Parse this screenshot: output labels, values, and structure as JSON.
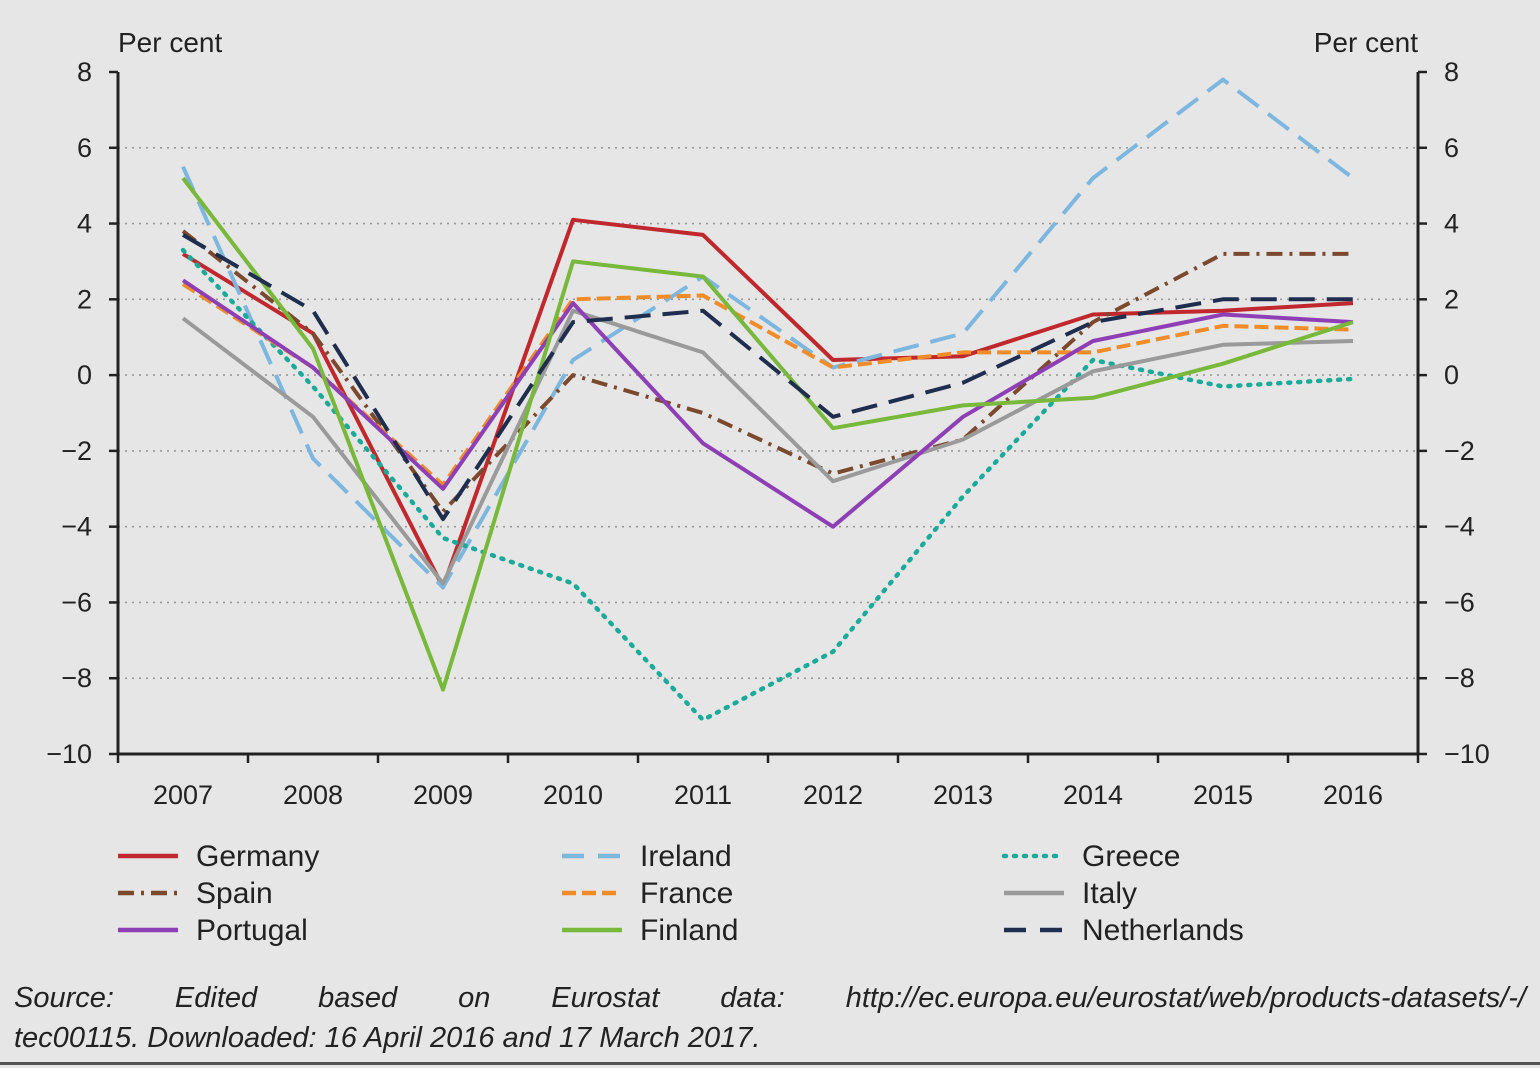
{
  "chart_data": {
    "type": "line",
    "ylabel_left": "Per cent",
    "ylabel_right": "Per cent",
    "ylim": [
      -10,
      8
    ],
    "y_ticks": [
      8,
      6,
      4,
      2,
      0,
      -2,
      -4,
      -6,
      -8,
      -10
    ],
    "y_tick_labels": [
      "8",
      "6",
      "4",
      "2",
      "0",
      "−2",
      "−4",
      "−6",
      "−8",
      "−10"
    ],
    "categories": [
      "2007",
      "2008",
      "2009",
      "2010",
      "2011",
      "2012",
      "2013",
      "2014",
      "2015",
      "2016"
    ],
    "grid": "horizontal dotted",
    "legend_position": "bottom",
    "series": [
      {
        "name": "Germany",
        "color": "#c0282d",
        "style": "solid",
        "values": [
          3.2,
          1.1,
          -5.6,
          4.1,
          3.7,
          0.4,
          0.5,
          1.6,
          1.7,
          1.9
        ]
      },
      {
        "name": "Ireland",
        "color": "#7db7e0",
        "style": "long-dash",
        "values": [
          5.5,
          -2.2,
          -5.6,
          0.4,
          2.6,
          0.2,
          1.1,
          5.2,
          7.8,
          5.2
        ]
      },
      {
        "name": "Greece",
        "color": "#1aaa99",
        "style": "dotted",
        "values": [
          3.3,
          -0.3,
          -4.3,
          -5.5,
          -9.1,
          -7.3,
          -3.2,
          0.4,
          -0.3,
          -0.1
        ]
      },
      {
        "name": "Spain",
        "color": "#7b4a2e",
        "style": "dash-dot",
        "values": [
          3.8,
          1.1,
          -3.6,
          0.0,
          -1.0,
          -2.6,
          -1.7,
          1.4,
          3.2,
          3.2
        ]
      },
      {
        "name": "France",
        "color": "#f28c28",
        "style": "dashed",
        "values": [
          2.4,
          0.2,
          -2.9,
          2.0,
          2.1,
          0.2,
          0.6,
          0.6,
          1.3,
          1.2
        ]
      },
      {
        "name": "Italy",
        "color": "#9a9a9a",
        "style": "solid",
        "values": [
          1.5,
          -1.1,
          -5.5,
          1.7,
          0.6,
          -2.8,
          -1.7,
          0.1,
          0.8,
          0.9
        ]
      },
      {
        "name": "Portugal",
        "color": "#8e3fb5",
        "style": "solid",
        "values": [
          2.5,
          0.2,
          -3.0,
          1.9,
          -1.8,
          -4.0,
          -1.1,
          0.9,
          1.6,
          1.4
        ]
      },
      {
        "name": "Finland",
        "color": "#78b83a",
        "style": "solid",
        "values": [
          5.2,
          0.7,
          -8.3,
          3.0,
          2.6,
          -1.4,
          -0.8,
          -0.6,
          0.3,
          1.4
        ]
      },
      {
        "name": "Netherlands",
        "color": "#1f2d4e",
        "style": "long-dash",
        "values": [
          3.7,
          1.7,
          -3.8,
          1.4,
          1.7,
          -1.1,
          -0.2,
          1.4,
          2.0,
          2.0
        ]
      }
    ]
  },
  "legend": [
    {
      "name": "Germany",
      "color": "#c0282d",
      "style": "solid"
    },
    {
      "name": "Ireland",
      "color": "#7db7e0",
      "style": "long-dash"
    },
    {
      "name": "Greece",
      "color": "#1aaa99",
      "style": "dotted"
    },
    {
      "name": "Spain",
      "color": "#7b4a2e",
      "style": "dash-dot"
    },
    {
      "name": "France",
      "color": "#f28c28",
      "style": "dashed"
    },
    {
      "name": "Italy",
      "color": "#9a9a9a",
      "style": "solid"
    },
    {
      "name": "Portugal",
      "color": "#8e3fb5",
      "style": "solid"
    },
    {
      "name": "Finland",
      "color": "#78b83a",
      "style": "solid"
    },
    {
      "name": "Netherlands",
      "color": "#1f2d4e",
      "style": "long-dash"
    }
  ],
  "source": {
    "line1": "Source: Edited based on Eurostat data: http://ec.europa.eu/eurostat/web/products-datasets/-/",
    "line2": "tec00115. Downloaded: 16 April 2016 and 17 March 2017."
  }
}
